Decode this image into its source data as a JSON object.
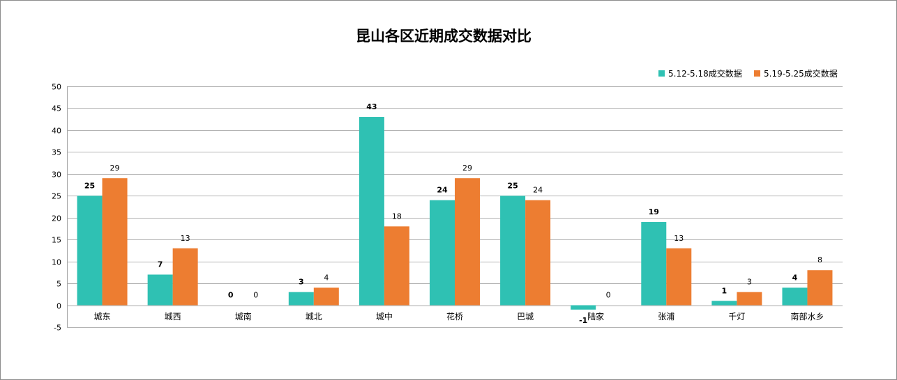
{
  "chart_data": {
    "type": "bar",
    "title": "昆山各区近期成交数据对比",
    "categories": [
      "城东",
      "城西",
      "城南",
      "城北",
      "城中",
      "花桥",
      "巴城",
      "陆家",
      "张浦",
      "千灯",
      "南部水乡"
    ],
    "series": [
      {
        "name": "5.12-5.18成交数据",
        "color": "#2FC1B3",
        "values": [
          25,
          7,
          0,
          3,
          43,
          24,
          25,
          -1,
          19,
          1,
          4
        ]
      },
      {
        "name": "5.19-5.25成交数据",
        "color": "#ED7D31",
        "values": [
          29,
          13,
          0,
          4,
          18,
          29,
          24,
          0,
          13,
          3,
          8
        ]
      }
    ],
    "ylim": [
      -5,
      50
    ],
    "yticks": [
      50,
      45,
      40,
      35,
      30,
      25,
      20,
      15,
      10,
      5,
      0,
      -5
    ],
    "grid": true,
    "legend_position": "top-right"
  }
}
